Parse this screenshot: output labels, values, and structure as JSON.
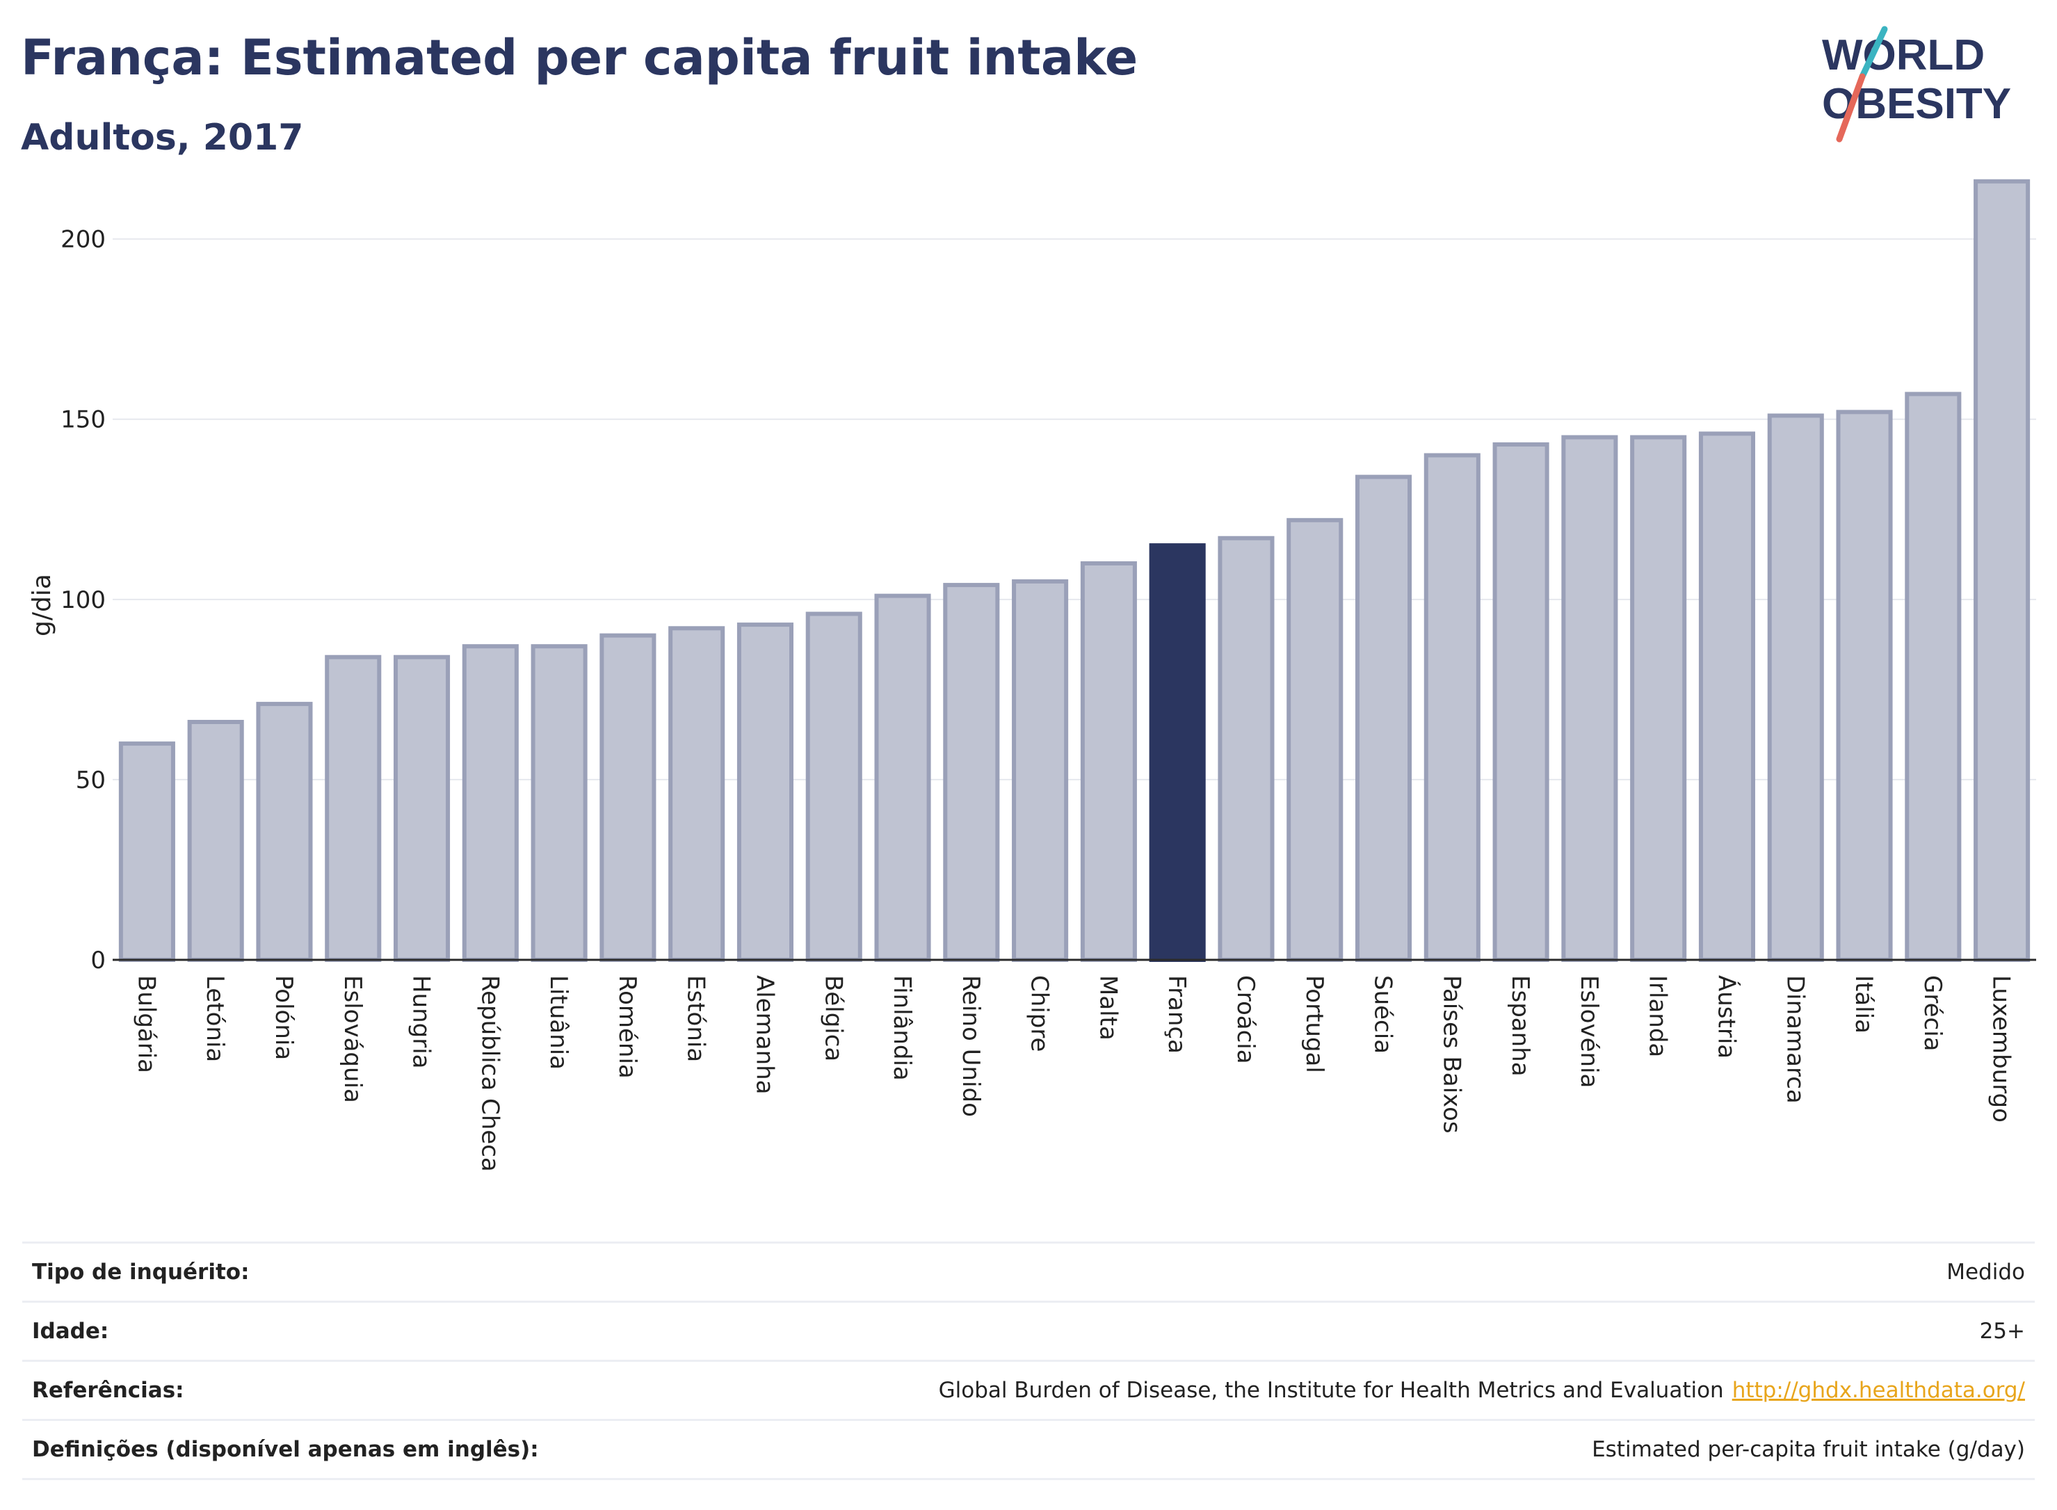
{
  "header": {
    "title": "França: Estimated per capita fruit intake",
    "subtitle": "Adultos, 2017"
  },
  "logo": {
    "line1": "WORLD",
    "line2": "OBESITY",
    "colors": {
      "text": "#2b3660",
      "slash_top": "#3bb4c1",
      "slash_bottom": "#e5685a"
    }
  },
  "chart_data": {
    "type": "bar",
    "ylabel": "g/dia",
    "ylim": [
      0,
      220
    ],
    "yticks": [
      0,
      50,
      100,
      150,
      200
    ],
    "grid": true,
    "highlight": "França",
    "colors": {
      "bar": "#bfc3d2",
      "bar_border": "#9aa0b8",
      "highlight": "#2b3660"
    },
    "categories": [
      "Bulgária",
      "Letónia",
      "Polónia",
      "Eslováquia",
      "Hungria",
      "República Checa",
      "Lituânia",
      "Roménia",
      "Estónia",
      "Alemanha",
      "Bélgica",
      "Finlândia",
      "Reino Unido",
      "Chipre",
      "Malta",
      "França",
      "Croácia",
      "Portugal",
      "Suécia",
      "Países Baixos",
      "Espanha",
      "Eslovénia",
      "Irlanda",
      "Áustria",
      "Dinamarca",
      "Itália",
      "Grécia",
      "Luxemburgo"
    ],
    "values": [
      60,
      66,
      71,
      84,
      84,
      87,
      87,
      90,
      92,
      93,
      96,
      101,
      104,
      105,
      110,
      115,
      117,
      122,
      134,
      140,
      143,
      145,
      145,
      146,
      151,
      152,
      157,
      216
    ]
  },
  "info": [
    {
      "label": "Tipo de inquérito:",
      "value": "Medido"
    },
    {
      "label": "Idade:",
      "value": "25+"
    },
    {
      "label": "Referências:",
      "value": "Global Burden of Disease, the Institute for Health Metrics and Evaluation",
      "link": "http://ghdx.healthdata.org/"
    },
    {
      "label": "Definições (disponível apenas em inglês):",
      "value": "Estimated per-capita fruit intake (g/day)"
    }
  ]
}
